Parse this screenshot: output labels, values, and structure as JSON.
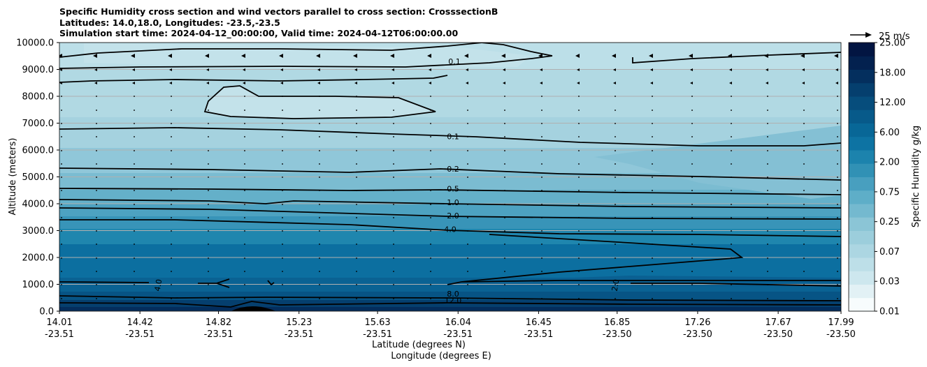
{
  "chart_data": {
    "type": "heatmap",
    "title_lines": [
      "Specific Humidity cross section and wind vectors parallel to cross section: CrosssectionB",
      "Latitudes: 14.0,18.0, Longitudes: -23.5,-23.5",
      "Simulation start time: 2024-04-12_00:00:00, Valid time: 2024-04-12T06:00:00.00"
    ],
    "ylabel": "Altitude (meters)",
    "xlabel_lines": [
      "Latitude (degrees N)",
      "Longitude (degrees E)"
    ],
    "ylim": [
      0,
      10000
    ],
    "y_ticks": [
      "0.0",
      "1000.0",
      "2000.0",
      "3000.0",
      "4000.0",
      "5000.0",
      "6000.0",
      "7000.0",
      "8000.0",
      "9000.0",
      "10000.0"
    ],
    "x_ticks": [
      {
        "lat": "14.01",
        "lon": "-23.51"
      },
      {
        "lat": "14.42",
        "lon": "-23.51"
      },
      {
        "lat": "14.82",
        "lon": "-23.51"
      },
      {
        "lat": "15.23",
        "lon": "-23.51"
      },
      {
        "lat": "15.63",
        "lon": "-23.51"
      },
      {
        "lat": "16.04",
        "lon": "-23.51"
      },
      {
        "lat": "16.45",
        "lon": "-23.51"
      },
      {
        "lat": "16.85",
        "lon": "-23.50"
      },
      {
        "lat": "17.26",
        "lon": "-23.50"
      },
      {
        "lat": "17.67",
        "lon": "-23.50"
      },
      {
        "lat": "17.99",
        "lon": "-23.50"
      }
    ],
    "grid": "horizontal",
    "colorbar": {
      "label": "Specific Humidity g/kg",
      "tick_labels": [
        "0.01",
        "0.03",
        "0.07",
        "0.25",
        "0.75",
        "2.00",
        "6.00",
        "12.00",
        "18.00",
        "25.00"
      ],
      "levels": [
        0.01,
        0.02,
        0.03,
        0.05,
        0.07,
        0.1,
        0.25,
        0.5,
        0.75,
        1.0,
        2.0,
        4.0,
        6.0,
        8.0,
        12.0,
        15.0,
        18.0,
        21.0,
        25.0
      ],
      "colors": [
        "#f7fcfd",
        "#e2f1f5",
        "#cde7ee",
        "#bddfe8",
        "#acd6e2",
        "#9ccedc",
        "#8bc5d6",
        "#74b9cf",
        "#5eaec8",
        "#489fbf",
        "#3191b5",
        "#1c83ad",
        "#0d73a3",
        "#086797",
        "#075a8a",
        "#064d7c",
        "#053f6e",
        "#042f5e",
        "#03214f",
        "#021542"
      ]
    },
    "contour_labels": [
      {
        "value": "0.1",
        "alt": 9200
      },
      {
        "value": "0.1",
        "alt": 6400
      },
      {
        "value": "0.2",
        "alt": 5200
      },
      {
        "value": "0.5",
        "alt": 4450
      },
      {
        "value": "1.0",
        "alt": 3950
      },
      {
        "value": "2.0",
        "alt": 3450
      },
      {
        "value": "4.0",
        "alt": 2950
      },
      {
        "value": "4.0",
        "alt": 950
      },
      {
        "value": "2.0",
        "alt": 950
      },
      {
        "value": "8.0",
        "alt": 550
      },
      {
        "value": "12.0",
        "alt": 300
      }
    ],
    "quiver_key": {
      "label": "25 m/s"
    }
  }
}
